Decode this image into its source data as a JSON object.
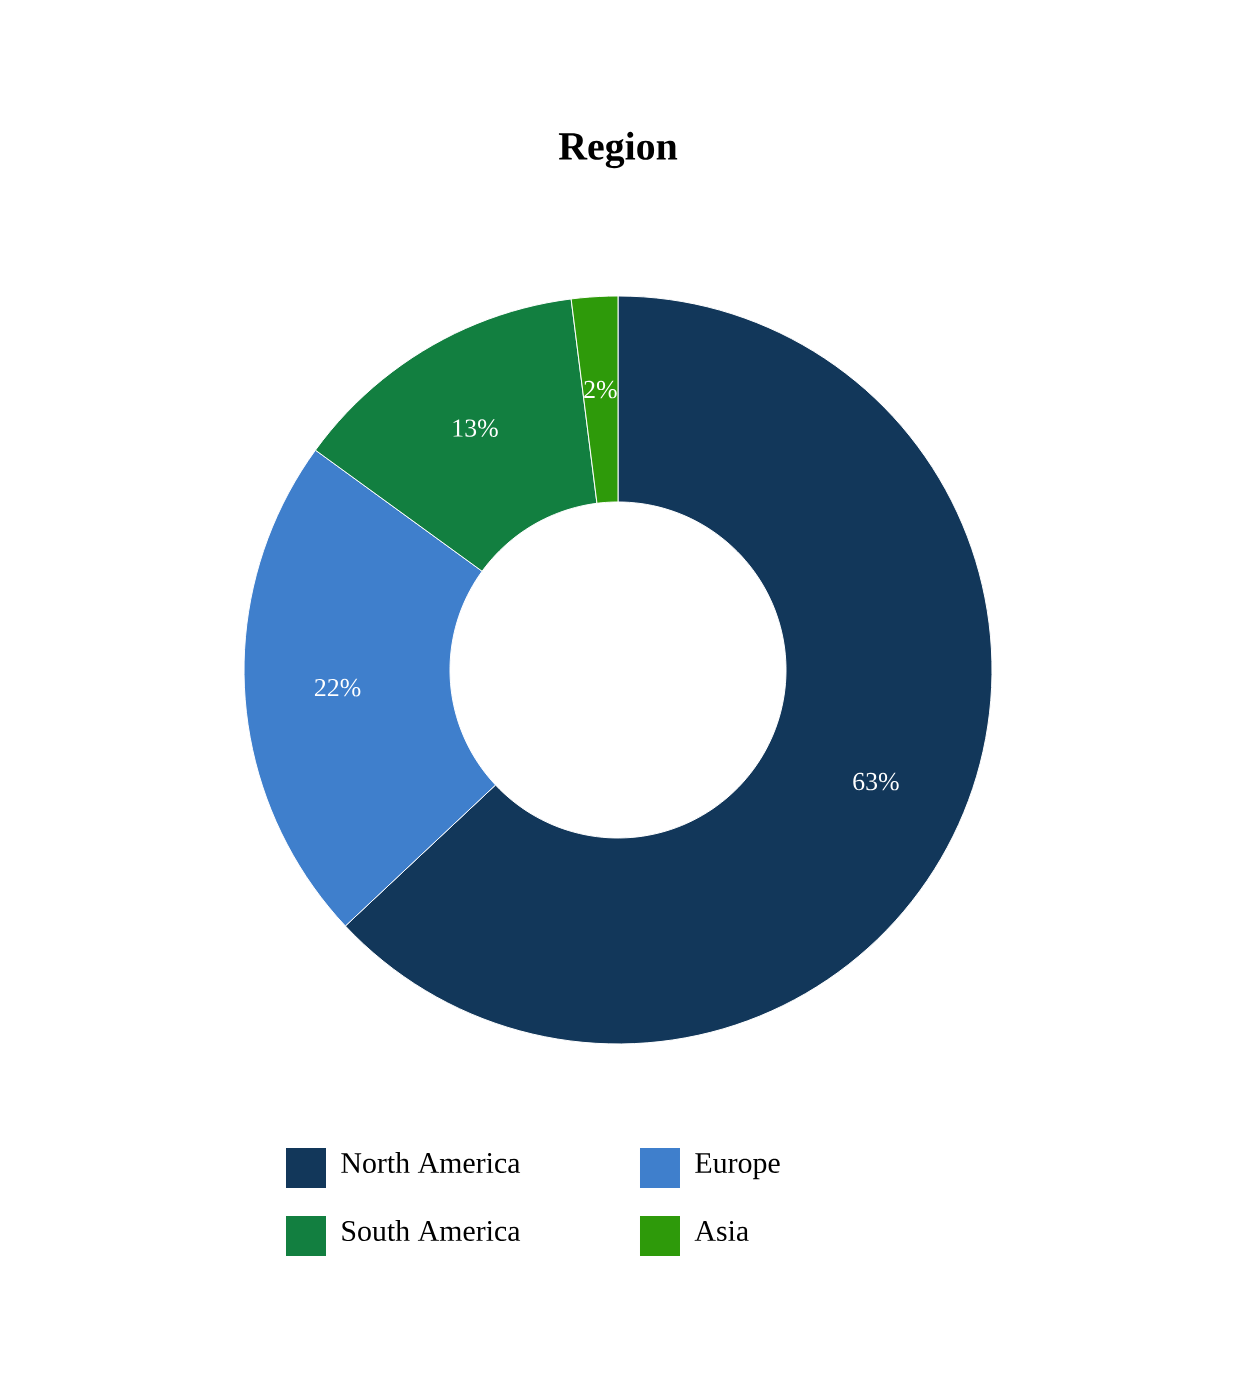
{
  "chart_data": {
    "type": "donut",
    "title": "Region",
    "categories": [
      "North America",
      "Europe",
      "South America",
      "Asia"
    ],
    "values": [
      63,
      22,
      13,
      2
    ],
    "value_labels": [
      "63%",
      "22%",
      "13%",
      "2%"
    ],
    "colors": [
      "#12375a",
      "#3f7fcc",
      "#127f40",
      "#2e9a0a"
    ],
    "legend": "bottom"
  }
}
